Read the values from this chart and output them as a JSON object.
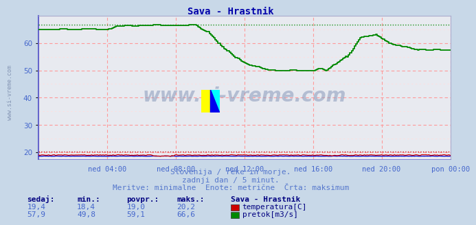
{
  "title": "Sava - Hrastnik",
  "title_color": "#0000aa",
  "bg_color": "#c8d8e8",
  "plot_bg_color": "#e8eaf0",
  "grid_color_major": "#ff9999",
  "grid_color_minor": "#ffdddd",
  "tick_color": "#4466cc",
  "temp_color": "#cc0000",
  "flow_color": "#008800",
  "blue_color": "#0000cc",
  "watermark_color": "#8899bb",
  "watermark_alpha": 0.55,
  "x_ticks_labels": [
    "ned 04:00",
    "ned 08:00",
    "ned 12:00",
    "ned 16:00",
    "ned 20:00",
    "pon 00:00"
  ],
  "x_ticks_pos": [
    0.167,
    0.333,
    0.5,
    0.667,
    0.833,
    1.0
  ],
  "ylim": [
    17.5,
    70
  ],
  "yticks": [
    20,
    30,
    40,
    50,
    60
  ],
  "yminor": [
    25,
    35,
    45,
    55,
    65
  ],
  "temp_max_line": 20.2,
  "flow_max_line": 66.6,
  "subtitle1": "Slovenija / reke in morje.",
  "subtitle2": "zadnji dan / 5 minut.",
  "subtitle3": "Meritve: minimalne  Enote: metrične  Črta: maksimum",
  "subtitle_color": "#5577cc",
  "table_header_color": "#000080",
  "table_val_color": "#4466cc",
  "table_headers": [
    "sedaj:",
    "min.:",
    "povpr.:",
    "maks.:"
  ],
  "temp_row": [
    "19,4",
    "18,4",
    "19,0",
    "20,2"
  ],
  "flow_row": [
    "57,9",
    "49,8",
    "59,1",
    "66,6"
  ],
  "legend_title": "Sava - Hrastnik",
  "legend_temp": "temperatura[C]",
  "legend_flow": "pretok[m3/s]",
  "side_watermark_color": "#7788aa"
}
